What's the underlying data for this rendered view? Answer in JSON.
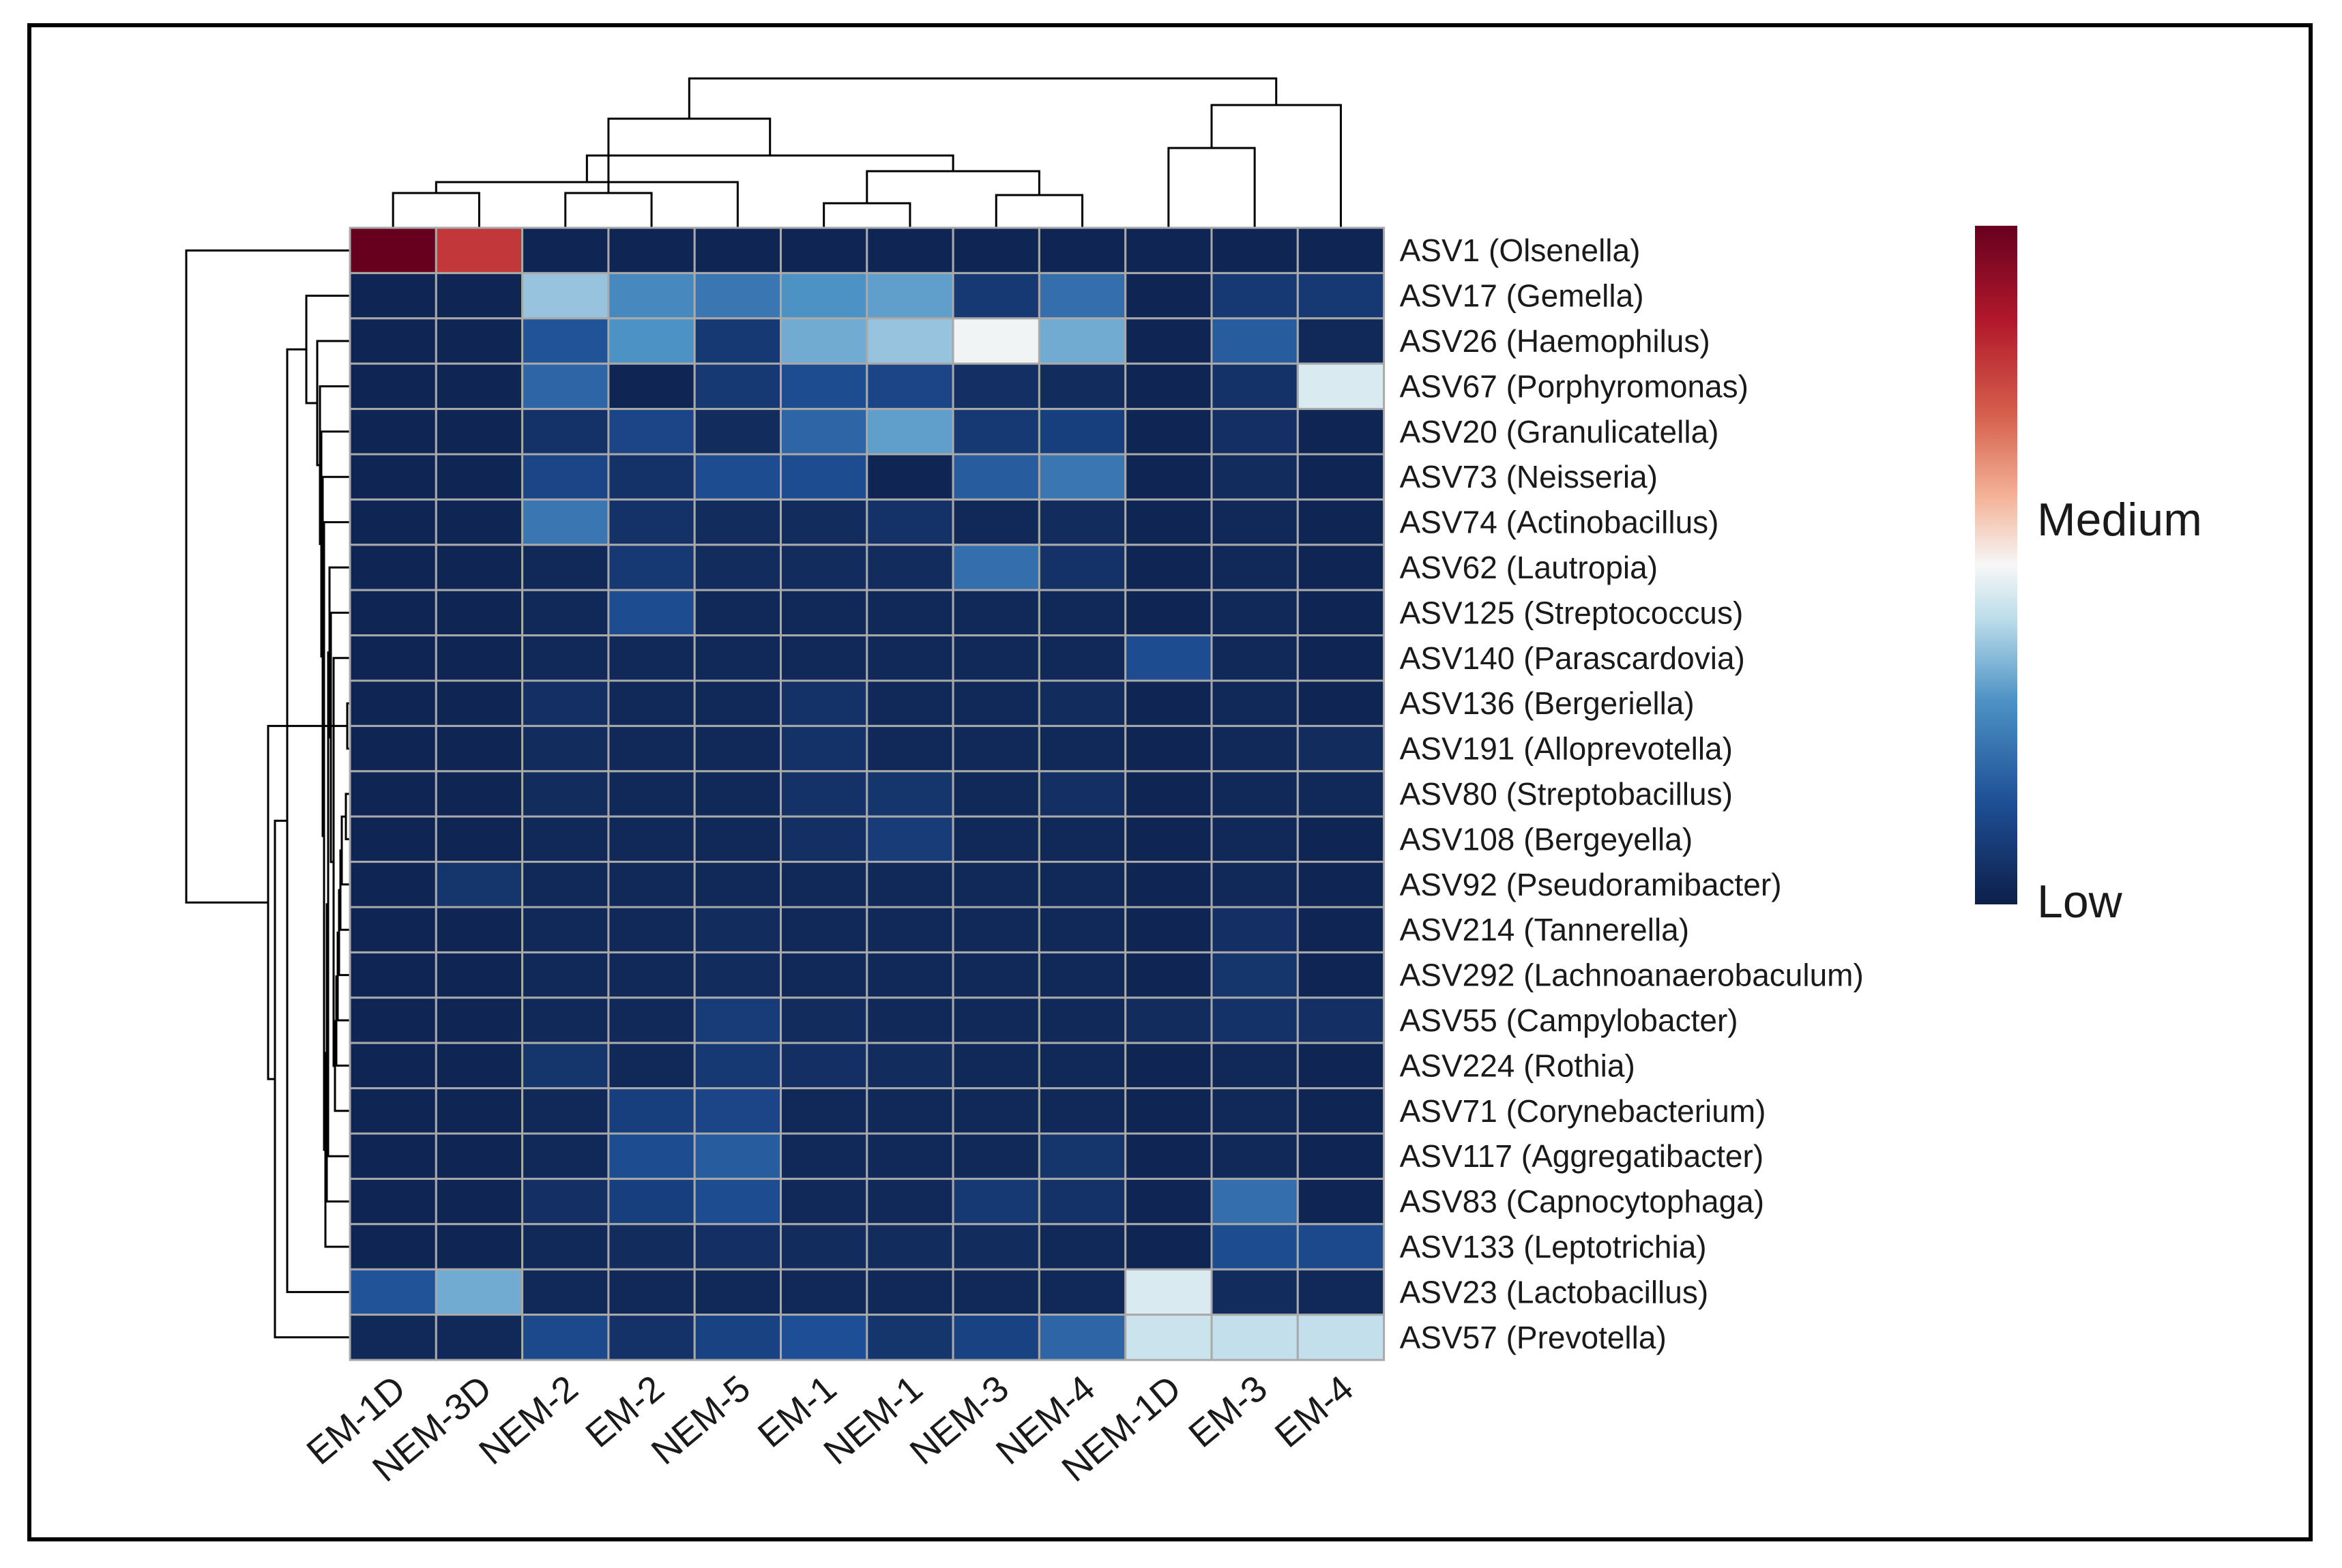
{
  "chart_data": {
    "type": "heatmap",
    "title": "",
    "columns": [
      "EM-1D",
      "NEM-3D",
      "NEM-2",
      "EM-2",
      "NEM-5",
      "EM-1",
      "NEM-1",
      "NEM-3",
      "NEM-4",
      "NEM-1D",
      "EM-3",
      "EM-4"
    ],
    "rows": [
      "ASV1 (Olsenella)",
      "ASV17 (Gemella)",
      "ASV26 (Haemophilus)",
      "ASV67 (Porphyromonas)",
      "ASV20 (Granulicatella)",
      "ASV73 (Neisseria)",
      "ASV74 (Actinobacillus)",
      "ASV62 (Lautropia)",
      "ASV125 (Streptococcus)",
      "ASV140 (Parascardovia)",
      "ASV136 (Bergeriella)",
      "ASV191 (Alloprevotella)",
      "ASV80 (Streptobacillus)",
      "ASV108 (Bergeyella)",
      "ASV92 (Pseudoramibacter)",
      "ASV214 (Tannerella)",
      "ASV292 (Lachnoanaerobaculum)",
      "ASV55 (Campylobacter)",
      "ASV224 (Rothia)",
      "ASV71 (Corynebacterium)",
      "ASV117 (Aggregatibacter)",
      "ASV83 (Capnocytophaga)",
      "ASV133 (Leptotrichia)",
      "ASV23 (Lactobacillus)",
      "ASV57 (Prevotella)"
    ],
    "values": [
      [
        1.0,
        0.8,
        0.02,
        0.02,
        0.02,
        0.02,
        0.02,
        0.02,
        0.02,
        0.02,
        0.02,
        0.02
      ],
      [
        0.02,
        0.02,
        0.38,
        0.28,
        0.24,
        0.3,
        0.32,
        0.08,
        0.22,
        0.02,
        0.08,
        0.08
      ],
      [
        0.02,
        0.02,
        0.16,
        0.3,
        0.08,
        0.34,
        0.38,
        0.49,
        0.34,
        0.02,
        0.18,
        0.03
      ],
      [
        0.02,
        0.02,
        0.2,
        0.02,
        0.08,
        0.14,
        0.12,
        0.05,
        0.04,
        0.02,
        0.06,
        0.46
      ],
      [
        0.02,
        0.02,
        0.06,
        0.12,
        0.04,
        0.2,
        0.32,
        0.08,
        0.1,
        0.02,
        0.05,
        0.02
      ],
      [
        0.02,
        0.02,
        0.12,
        0.06,
        0.14,
        0.14,
        0.02,
        0.18,
        0.24,
        0.02,
        0.04,
        0.02
      ],
      [
        0.02,
        0.02,
        0.24,
        0.06,
        0.04,
        0.04,
        0.06,
        0.03,
        0.04,
        0.02,
        0.03,
        0.02
      ],
      [
        0.02,
        0.02,
        0.03,
        0.08,
        0.04,
        0.04,
        0.04,
        0.22,
        0.06,
        0.02,
        0.03,
        0.02
      ],
      [
        0.02,
        0.02,
        0.03,
        0.14,
        0.03,
        0.03,
        0.03,
        0.03,
        0.03,
        0.02,
        0.03,
        0.02
      ],
      [
        0.02,
        0.02,
        0.03,
        0.03,
        0.03,
        0.03,
        0.03,
        0.03,
        0.03,
        0.14,
        0.03,
        0.02
      ],
      [
        0.02,
        0.02,
        0.05,
        0.03,
        0.03,
        0.06,
        0.03,
        0.03,
        0.04,
        0.02,
        0.03,
        0.02
      ],
      [
        0.02,
        0.02,
        0.04,
        0.03,
        0.03,
        0.06,
        0.03,
        0.03,
        0.03,
        0.02,
        0.03,
        0.04
      ],
      [
        0.02,
        0.02,
        0.04,
        0.03,
        0.03,
        0.06,
        0.07,
        0.03,
        0.05,
        0.02,
        0.03,
        0.03
      ],
      [
        0.02,
        0.02,
        0.03,
        0.03,
        0.03,
        0.05,
        0.09,
        0.03,
        0.03,
        0.02,
        0.03,
        0.02
      ],
      [
        0.02,
        0.07,
        0.03,
        0.03,
        0.03,
        0.03,
        0.03,
        0.03,
        0.03,
        0.02,
        0.03,
        0.02
      ],
      [
        0.02,
        0.02,
        0.03,
        0.03,
        0.04,
        0.03,
        0.03,
        0.03,
        0.03,
        0.02,
        0.05,
        0.02
      ],
      [
        0.02,
        0.02,
        0.03,
        0.03,
        0.04,
        0.03,
        0.03,
        0.03,
        0.03,
        0.02,
        0.07,
        0.02
      ],
      [
        0.02,
        0.02,
        0.03,
        0.03,
        0.09,
        0.04,
        0.03,
        0.03,
        0.03,
        0.04,
        0.06,
        0.05
      ],
      [
        0.02,
        0.02,
        0.07,
        0.03,
        0.08,
        0.05,
        0.04,
        0.03,
        0.03,
        0.02,
        0.03,
        0.02
      ],
      [
        0.02,
        0.02,
        0.03,
        0.1,
        0.12,
        0.03,
        0.03,
        0.03,
        0.03,
        0.02,
        0.03,
        0.02
      ],
      [
        0.02,
        0.02,
        0.03,
        0.14,
        0.18,
        0.03,
        0.03,
        0.03,
        0.07,
        0.02,
        0.03,
        0.02
      ],
      [
        0.02,
        0.02,
        0.05,
        0.1,
        0.14,
        0.03,
        0.03,
        0.08,
        0.06,
        0.02,
        0.22,
        0.02
      ],
      [
        0.02,
        0.02,
        0.03,
        0.04,
        0.05,
        0.04,
        0.04,
        0.04,
        0.03,
        0.02,
        0.14,
        0.13
      ],
      [
        0.16,
        0.34,
        0.03,
        0.03,
        0.03,
        0.03,
        0.03,
        0.03,
        0.03,
        0.46,
        0.04,
        0.03
      ],
      [
        0.03,
        0.03,
        0.13,
        0.06,
        0.11,
        0.15,
        0.07,
        0.11,
        0.2,
        0.44,
        0.43,
        0.43
      ]
    ],
    "value_scale": "0 = Low, 0.5 = Medium, 1 = High (relative abundance, unlabeled scale)",
    "colorbar": {
      "labels": [
        "Medium",
        "Low"
      ]
    },
    "colors": {
      "low": "#0d1f4a",
      "mid": "#f7f7f7",
      "high": "#67001f",
      "cell_border": "#a9a9a9",
      "tree": "#000000"
    },
    "column_dendrogram": [
      [
        0,
        1
      ],
      [
        2,
        3
      ],
      [
        4,
        12
      ],
      [
        5,
        6
      ],
      [
        7,
        8
      ],
      [
        15,
        16
      ],
      [
        14,
        17
      ],
      [
        9,
        10
      ],
      [
        19,
        11
      ],
      [
        13,
        18
      ],
      [
        21,
        20
      ]
    ],
    "row_dendrogram": [
      [
        10,
        11
      ],
      [
        12,
        13
      ],
      [
        26,
        14
      ],
      [
        27,
        15
      ],
      [
        28,
        16
      ],
      [
        29,
        17
      ],
      [
        30,
        18
      ],
      [
        31,
        19
      ],
      [
        9,
        32
      ],
      [
        8,
        33
      ],
      [
        7,
        34
      ],
      [
        35,
        20
      ],
      [
        36,
        21
      ],
      [
        37,
        22
      ],
      [
        6,
        38
      ],
      [
        5,
        39
      ],
      [
        4,
        40
      ],
      [
        3,
        41
      ],
      [
        2,
        42
      ],
      [
        1,
        43
      ],
      [
        44,
        23
      ],
      [
        45,
        24
      ],
      [
        46,
        25
      ],
      [
        47,
        0
      ]
    ],
    "dendrogram_note": "merge indices: 0..n-1 are leaves, n.. are previous merges"
  }
}
